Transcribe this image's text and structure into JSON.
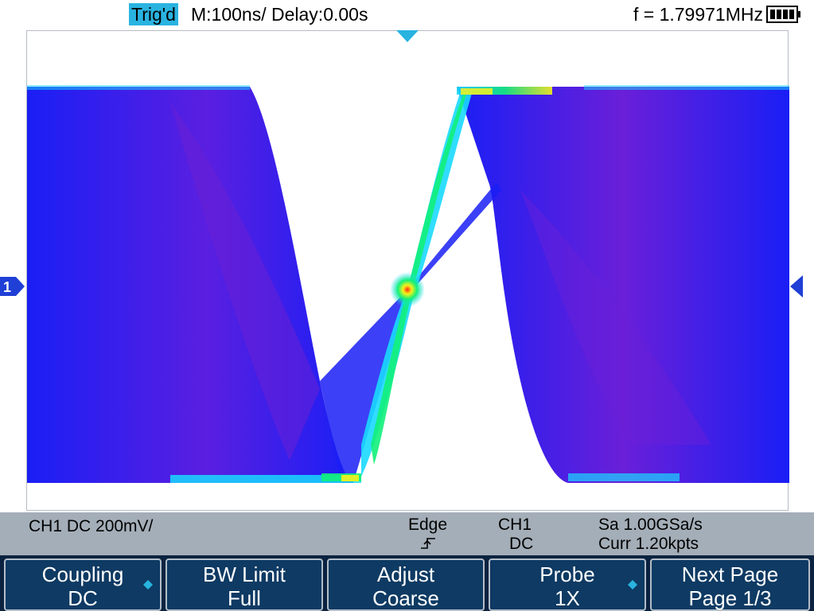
{
  "top_bar": {
    "trigger_status": "Trig'd",
    "timebase": "M:100ns/ Delay:0.00s",
    "frequency": "f = 1.79971MHz",
    "battery_icon": "battery-full-icon"
  },
  "markers": {
    "channel_marker": "1",
    "trigger_position_icon": "trigger-position-icon",
    "trigger_level_icon": "trigger-level-icon"
  },
  "info_bar": {
    "channel_setting": "CH1 DC 200mV/",
    "trigger_type": "Edge",
    "trigger_slope_icon": "rising-edge-icon",
    "trigger_source": "CH1",
    "trigger_coupling": "DC",
    "sample_rate": "Sa 1.00GSa/s",
    "memory_depth": "Curr 1.20kpts"
  },
  "menu": {
    "softkeys": [
      {
        "label": "Coupling",
        "value": "DC",
        "icon": "adjust-knob-icon"
      },
      {
        "label": "BW Limit",
        "value": "Full"
      },
      {
        "label": "Adjust",
        "value": "Coarse"
      },
      {
        "label": "Probe",
        "value": "1X",
        "icon": "adjust-knob-icon"
      },
      {
        "label": "Next Page",
        "value": "Page 1/3"
      }
    ]
  },
  "colors": {
    "trace_blue": "#1a1ff5",
    "trace_purple": "#7a1fd6",
    "trace_cyan": "#19d9ff",
    "trace_green": "#12f07a",
    "trace_yellow": "#f6f21a",
    "trace_red": "#ff2a10",
    "accent": "#29b3e0",
    "info_bar": "#a4aeb8",
    "menu_bg": "#0e3a63"
  }
}
